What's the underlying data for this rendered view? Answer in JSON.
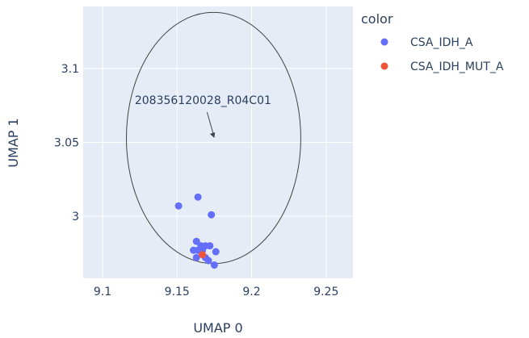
{
  "chart_data": {
    "type": "scatter",
    "xlabel": "UMAP 0",
    "ylabel": "UMAP 1",
    "xlim": [
      9.087,
      9.268
    ],
    "ylim": [
      2.958,
      3.142
    ],
    "x_ticks": [
      9.1,
      9.15,
      9.2,
      9.25
    ],
    "x_tick_labels": [
      "9.1",
      "9.15",
      "9.2",
      "9.25"
    ],
    "y_ticks": [
      3.0,
      3.05,
      3.1
    ],
    "y_tick_labels": [
      "3",
      "3.05",
      "3.1"
    ],
    "grid": true,
    "legend": {
      "title": "color",
      "placement": "right"
    },
    "series": [
      {
        "name": "CSA_IDH_A",
        "color": "#636efa",
        "points": [
          {
            "x": 9.151,
            "y": 3.007
          },
          {
            "x": 9.164,
            "y": 3.013
          },
          {
            "x": 9.173,
            "y": 3.001
          },
          {
            "x": 9.163,
            "y": 2.983
          },
          {
            "x": 9.166,
            "y": 2.98
          },
          {
            "x": 9.169,
            "y": 2.98
          },
          {
            "x": 9.172,
            "y": 2.98
          },
          {
            "x": 9.161,
            "y": 2.977
          },
          {
            "x": 9.164,
            "y": 2.977
          },
          {
            "x": 9.167,
            "y": 2.977
          },
          {
            "x": 9.176,
            "y": 2.976
          },
          {
            "x": 9.163,
            "y": 2.972
          },
          {
            "x": 9.169,
            "y": 2.972
          },
          {
            "x": 9.171,
            "y": 2.97
          },
          {
            "x": 9.175,
            "y": 2.967
          }
        ]
      },
      {
        "name": "CSA_IDH_MUT_A",
        "color": "#ef553b",
        "points": [
          {
            "x": 9.167,
            "y": 2.974
          }
        ]
      }
    ],
    "annotations": [
      {
        "text": "208356120028_R04C01",
        "x": 9.175,
        "y": 3.053,
        "arrow": true
      }
    ],
    "shapes": [
      {
        "type": "circle",
        "x0": 9.116,
        "x1": 9.233,
        "y0": 2.968,
        "y1": 3.138
      }
    ]
  }
}
